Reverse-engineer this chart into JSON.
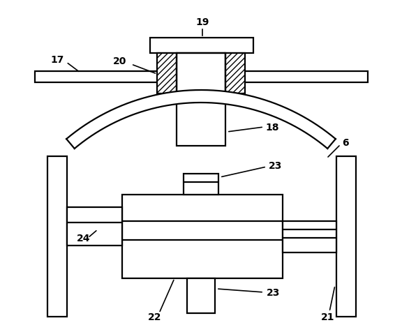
{
  "bg_color": "#ffffff",
  "line_color": "#000000",
  "lw": 1.6,
  "fig_width": 5.76,
  "fig_height": 4.77
}
